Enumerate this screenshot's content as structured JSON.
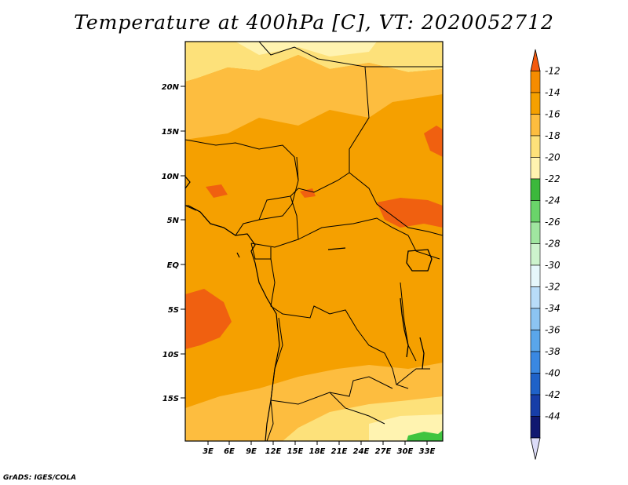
{
  "title": "Temperature at 400hPa [C], VT: 2020052712",
  "credit": "GrADS: IGES/COLA",
  "map": {
    "lat_labels": [
      "20N",
      "15N",
      "10N",
      "5N",
      "EQ",
      "5S",
      "10S",
      "15S"
    ],
    "lon_labels": [
      "3E",
      "6E",
      "9E",
      "12E",
      "15E",
      "18E",
      "21E",
      "24E",
      "27E",
      "30E",
      "33E"
    ],
    "field_colors": {
      "darkest": "#f06010",
      "dominant": "#f5a000",
      "medium": "#fdbd3f",
      "light": "#fde17a",
      "palest": "#fff3b0",
      "green": "#3fc43f"
    }
  },
  "colorbar": {
    "labels": [
      "-12",
      "-14",
      "-16",
      "-18",
      "-20",
      "-22",
      "-24",
      "-26",
      "-28",
      "-30",
      "-32",
      "-34",
      "-36",
      "-38",
      "-40",
      "-42",
      "-44"
    ],
    "colors": [
      "#f35a0f",
      "#f58c00",
      "#f5a000",
      "#fdbd3f",
      "#fde17a",
      "#fff3b0",
      "#3cb83c",
      "#6ad46a",
      "#a0e6a0",
      "#cdf3cd",
      "#e6f7fb",
      "#b8dcf8",
      "#8cc4f2",
      "#5aa6ea",
      "#3a88e2",
      "#1f62c8",
      "#173ea8",
      "#101870",
      "#dcdcf8"
    ]
  }
}
